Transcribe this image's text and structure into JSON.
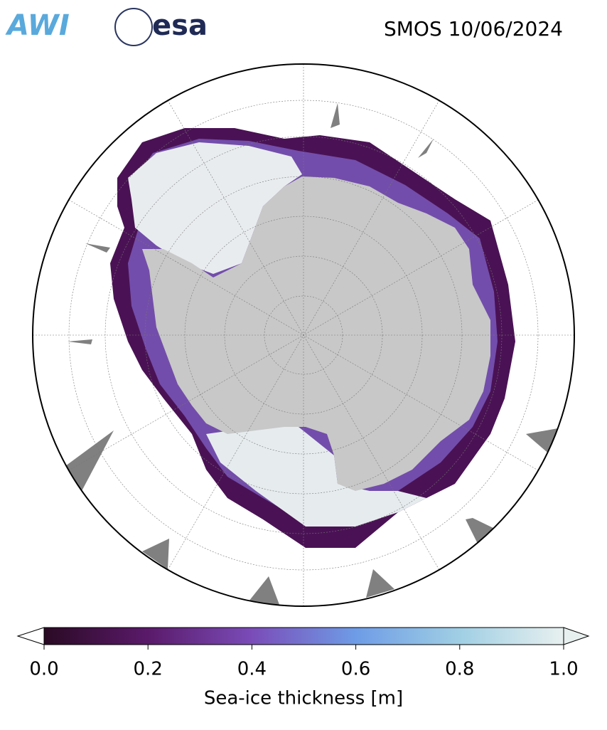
{
  "header": {
    "logos": [
      "AWI",
      "esa"
    ],
    "title": "SMOS 10/06/2024"
  },
  "colorbar": {
    "label": "Sea-ice thickness [m]",
    "lim": [
      0,
      1
    ],
    "ticks": [
      {
        "value": 0,
        "label": "0.0"
      },
      0.2,
      0.4,
      0.6,
      0.8,
      {
        "value": 1,
        "label": "1.0"
      }
    ],
    "colors": [
      "#2a0a24",
      "#5a1a6a",
      "#7a4cb8",
      "#6e9ce6",
      "#a0cfe4",
      "#e8f0ef"
    ]
  }
}
